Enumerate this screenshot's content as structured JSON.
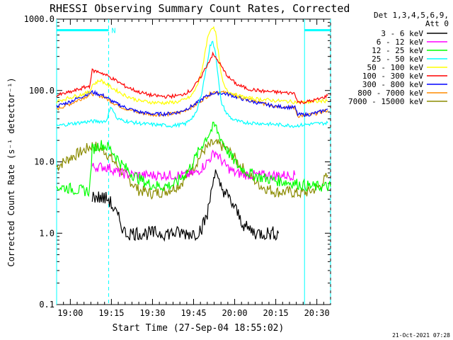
{
  "chart_data": {
    "type": "line",
    "title": "RHESSI Observing Summary Count Rates, Corrected",
    "xlabel": "Start Time (27-Sep-04 18:55:02)",
    "ylabel": "Corrected Count Rate (s⁻¹ detector⁻¹)",
    "y_scale": "log",
    "ylim": [
      0.1,
      1000
    ],
    "xlim_minutes_after_1855": [
      0,
      100
    ],
    "x_ticks": [
      {
        "t": 5,
        "label": "19:00"
      },
      {
        "t": 20,
        "label": "19:15"
      },
      {
        "t": 35,
        "label": "19:30"
      },
      {
        "t": 50,
        "label": "19:45"
      },
      {
        "t": 65,
        "label": "20:00"
      },
      {
        "t": 80,
        "label": "20:15"
      },
      {
        "t": 95,
        "label": "20:30"
      }
    ],
    "y_ticks": [
      {
        "v": 0.1,
        "label": "0.1"
      },
      {
        "v": 1,
        "label": "1.0"
      },
      {
        "v": 10,
        "label": "10.0"
      },
      {
        "v": 100,
        "label": "100.0"
      },
      {
        "v": 1000,
        "label": "1000.0"
      }
    ],
    "legend": {
      "placement": "right",
      "header": [
        "Det 1,3,4,5,6,9,",
        "Att 0"
      ]
    },
    "annotations": {
      "night_marker": "N",
      "footer": "21-Oct-2021 07:28"
    },
    "markers": {
      "solid_cyan_lines_t": [
        0,
        90.5
      ],
      "dashed_cyan_lines_t": [
        19,
        100
      ],
      "cyan_bars": [
        {
          "t0": 0,
          "t1": 19,
          "v": 700
        },
        {
          "t0": 90.5,
          "t1": 100,
          "v": 700
        }
      ]
    },
    "series": [
      {
        "name": "3 - 6 keV",
        "color": "#000000",
        "x": [
          13,
          19,
          23,
          25,
          29,
          35,
          41,
          45,
          49,
          51,
          53,
          55,
          56,
          57,
          58,
          59,
          61,
          63,
          65,
          67,
          69,
          73,
          81
        ],
        "y": [
          3.3,
          3.0,
          1.5,
          1.0,
          1.0,
          1.0,
          1.0,
          1.0,
          1.0,
          1.0,
          1.2,
          1.8,
          3.0,
          5.8,
          7.0,
          5.0,
          4.0,
          3.0,
          2.3,
          1.6,
          1.2,
          1.0,
          1.0
        ]
      },
      {
        "name": "6 - 12 keV",
        "color": "#ff00ff",
        "x": [
          13,
          17,
          19,
          23,
          27,
          31,
          35,
          39,
          43,
          47,
          51,
          54,
          57,
          58,
          59,
          61,
          63,
          65,
          69,
          75,
          81,
          87
        ],
        "y": [
          8.5,
          8.5,
          8.3,
          7.0,
          6.6,
          6.5,
          6.5,
          6.5,
          6.5,
          6.5,
          7.0,
          9.0,
          12.5,
          14.0,
          12.0,
          9.5,
          8.0,
          7.0,
          6.6,
          6.5,
          6.5,
          6.5
        ]
      },
      {
        "name": "12 - 25 keV",
        "color": "#00ff00",
        "x": [
          0,
          4,
          8,
          12,
          13,
          16,
          19,
          21,
          24,
          28,
          33,
          38,
          43,
          48,
          51,
          54,
          57,
          58,
          59,
          61,
          63,
          66,
          70,
          75,
          80,
          87,
          93,
          100
        ],
        "y": [
          4.5,
          4.3,
          4.0,
          3.9,
          15.0,
          17.5,
          16.0,
          13.0,
          9.0,
          6.5,
          5.0,
          4.5,
          4.8,
          7.5,
          12.0,
          20.0,
          30.0,
          32.0,
          25.0,
          18.0,
          13.0,
          9.0,
          7.0,
          6.0,
          5.5,
          5.0,
          4.5,
          4.5
        ]
      },
      {
        "name": "25 - 50 keV",
        "color": "#00ffff",
        "x": [
          0,
          5,
          10,
          13,
          18,
          20,
          22,
          27,
          32,
          37,
          42,
          47,
          51,
          53,
          55,
          56,
          57,
          58,
          59,
          60,
          62,
          64,
          67,
          72,
          77,
          82,
          87,
          93,
          99
        ],
        "y": [
          32,
          34,
          36,
          37,
          37,
          60,
          40,
          36,
          34,
          33,
          32,
          34,
          48,
          95,
          250,
          420,
          480,
          350,
          150,
          70,
          48,
          40,
          36,
          35,
          34,
          33,
          32,
          34,
          35
        ]
      },
      {
        "name": "50 - 100 keV",
        "color": "#ffff00",
        "x": [
          0,
          5,
          10,
          12,
          13,
          16,
          20,
          25,
          30,
          35,
          40,
          45,
          49,
          51,
          53,
          54,
          55,
          56,
          57,
          58,
          59,
          60,
          61,
          63,
          66,
          70,
          75,
          80,
          85,
          90,
          95,
          99
        ],
        "y": [
          70,
          80,
          90,
          95,
          120,
          140,
          110,
          85,
          72,
          68,
          67,
          70,
          82,
          110,
          180,
          320,
          520,
          700,
          780,
          650,
          350,
          170,
          120,
          95,
          85,
          78,
          75,
          72,
          70,
          68,
          70,
          72
        ]
      },
      {
        "name": "100 - 300 keV",
        "color": "#ff0000",
        "x": [
          0,
          5,
          10,
          12,
          13,
          16,
          20,
          25,
          30,
          35,
          40,
          45,
          49,
          52,
          55,
          57,
          59,
          61,
          63,
          66,
          70,
          75,
          80,
          85,
          87,
          88,
          92,
          96,
          99
        ],
        "y": [
          85,
          95,
          110,
          115,
          190,
          180,
          150,
          115,
          95,
          85,
          82,
          85,
          100,
          140,
          230,
          320,
          260,
          190,
          150,
          120,
          105,
          98,
          95,
          92,
          92,
          68,
          70,
          76,
          85
        ]
      },
      {
        "name": "300 - 800 keV",
        "color": "#0000ff",
        "x": [
          0,
          5,
          10,
          13,
          17,
          21,
          25,
          30,
          35,
          40,
          45,
          50,
          54,
          57,
          60,
          63,
          66,
          70,
          75,
          80,
          85,
          87,
          88,
          92,
          96,
          99
        ],
        "y": [
          60,
          70,
          85,
          95,
          85,
          68,
          58,
          50,
          47,
          47,
          50,
          62,
          80,
          92,
          92,
          88,
          80,
          72,
          65,
          60,
          58,
          58,
          46,
          46,
          50,
          55
        ]
      },
      {
        "name": "800 - 7000 keV",
        "color": "#ff8c00",
        "x": [
          0,
          5,
          10,
          13,
          17,
          21,
          25,
          30,
          35,
          40,
          45,
          50,
          54,
          57,
          60,
          63,
          66,
          70,
          75,
          80,
          85,
          87,
          88,
          92,
          96,
          99
        ],
        "y": [
          55,
          65,
          80,
          90,
          82,
          66,
          56,
          49,
          46,
          46,
          49,
          60,
          78,
          95,
          95,
          90,
          82,
          74,
          66,
          61,
          58,
          57,
          44,
          45,
          49,
          53
        ]
      },
      {
        "name": "7000 - 15000 keV",
        "color": "#8b8b00",
        "x": [
          0,
          5,
          10,
          13,
          17,
          21,
          25,
          30,
          35,
          40,
          45,
          50,
          54,
          57,
          60,
          63,
          66,
          70,
          75,
          80,
          85,
          88,
          92,
          96,
          99
        ],
        "y": [
          8.5,
          11.5,
          14.5,
          17.0,
          15.0,
          10.0,
          6.5,
          4.0,
          3.6,
          3.9,
          4.8,
          8.5,
          15.0,
          18.0,
          17.0,
          14.0,
          10.0,
          6.5,
          4.5,
          3.8,
          3.8,
          3.6,
          3.8,
          4.5,
          6.5
        ]
      }
    ]
  }
}
